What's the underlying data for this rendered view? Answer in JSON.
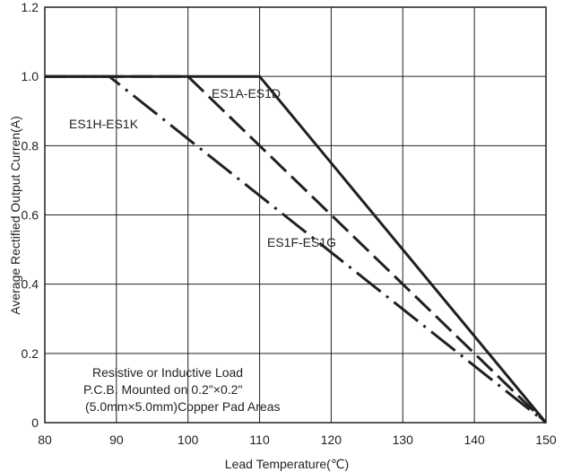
{
  "chart_data": {
    "type": "line",
    "title": "",
    "xlabel": "Lead Temperature(℃)",
    "ylabel": "Average Rectified Output Curren(A)",
    "xlim": [
      80,
      150
    ],
    "ylim": [
      0,
      1.2
    ],
    "x_ticks": [
      "80",
      "90",
      "100",
      "110",
      "120",
      "130",
      "140",
      "150"
    ],
    "y_ticks": [
      "0",
      "0.2",
      "0.4",
      "0.6",
      "0.8",
      "1.0",
      "1.2"
    ],
    "grid": true,
    "series": [
      {
        "name": "ES1A-ES1D",
        "style": "solid",
        "x": [
          80,
          110,
          150
        ],
        "y": [
          1.0,
          1.0,
          0
        ]
      },
      {
        "name": "ES1F-ES1G",
        "style": "dashed",
        "x": [
          80,
          100,
          150
        ],
        "y": [
          1.0,
          1.0,
          0
        ]
      },
      {
        "name": "ES1H-ES1K",
        "style": "dash-dot",
        "x": [
          80,
          89,
          150
        ],
        "y": [
          1.0,
          1.0,
          0
        ]
      }
    ],
    "annotations": {
      "note_lines": [
        "Resistive or Inductive Load",
        "P.C.B. Mounted on 0.2\"×0.2\"",
        "(5.0mm×5.0mm)Copper Pad Areas"
      ]
    },
    "colors": {
      "line": "#231f20",
      "grid": "#231f20",
      "background": "#ffffff"
    }
  }
}
